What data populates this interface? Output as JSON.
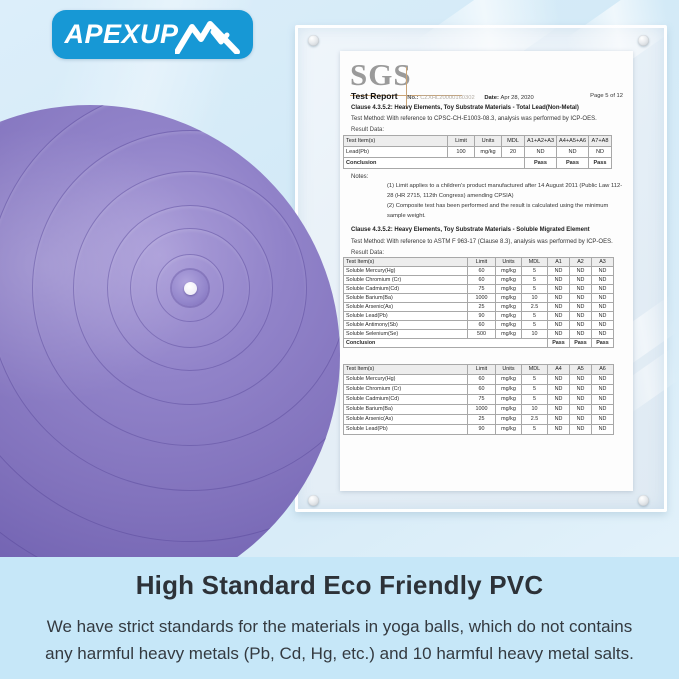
{
  "logo": {
    "text": "APEXUP",
    "icon": "mountain-icon",
    "brand_color": "#1798d5"
  },
  "report": {
    "lab_logo": "SGS",
    "title": "Test Report",
    "no_label": "No.:",
    "no_value": "CZXHL20000160302",
    "date_label": "Date:",
    "date_value": "Apr 28, 2020",
    "page": "Page 5 of 12",
    "section1": {
      "clause": "Clause 4.3.5.2: Heavy Elements, Toy Substrate Materials - Total Lead(Non-Metal)",
      "method_label": "Test Method:",
      "method": "With reference to CPSC-CH-E1003-08.3, analysis was performed by ICP-OES.",
      "result_label": "Result Data:",
      "table": {
        "headers": [
          "Test Item(s)",
          "Limit",
          "Units",
          "MDL",
          "A1+A2+A3",
          "A4+A5+A6",
          "A7+A8"
        ],
        "rows": [
          [
            "Lead(Pb)",
            "100",
            "mg/kg",
            "20",
            "ND",
            "ND",
            "ND"
          ]
        ],
        "conclusion": {
          "label": "Conclusion",
          "values": [
            "Pass",
            "Pass",
            "Pass"
          ]
        }
      },
      "notes_label": "Notes:",
      "notes": [
        "(1) Limit applies to a children's product manufactured after 14 August 2011 (Public Law 112-28 (HR 2715, 112th Congress) amending CPSIA)",
        "(2) Composite test has been performed and the result is calculated using the minimum sample weight."
      ]
    },
    "section2": {
      "clause": "Clause 4.3.5.2: Heavy Elements, Toy Substrate Materials - Soluble Migrated Element",
      "method_label": "Test Method:",
      "method": "With reference to ASTM F 963-17 (Clause 8.3), analysis was performed by ICP-OES.",
      "result_label": "Result Data:",
      "table": {
        "headers": [
          "Test Item(s)",
          "Limit",
          "Units",
          "MDL",
          "A1",
          "A2",
          "A3"
        ],
        "rows": [
          [
            "Soluble Mercury(Hg)",
            "60",
            "mg/kg",
            "5",
            "ND",
            "ND",
            "ND"
          ],
          [
            "Soluble Chromium (Cr)",
            "60",
            "mg/kg",
            "5",
            "ND",
            "ND",
            "ND"
          ],
          [
            "Soluble Cadmium(Cd)",
            "75",
            "mg/kg",
            "5",
            "ND",
            "ND",
            "ND"
          ],
          [
            "Soluble Barium(Ba)",
            "1000",
            "mg/kg",
            "10",
            "ND",
            "ND",
            "ND"
          ],
          [
            "Soluble Arsenic(As)",
            "25",
            "mg/kg",
            "2.5",
            "ND",
            "ND",
            "ND"
          ],
          [
            "Soluble Lead(Pb)",
            "90",
            "mg/kg",
            "5",
            "ND",
            "ND",
            "ND"
          ],
          [
            "Soluble Antimony(Sb)",
            "60",
            "mg/kg",
            "5",
            "ND",
            "ND",
            "ND"
          ],
          [
            "Soluble Selenium(Se)",
            "500",
            "mg/kg",
            "10",
            "ND",
            "ND",
            "ND"
          ]
        ],
        "conclusion": {
          "label": "Conclusion",
          "values": [
            "Pass",
            "Pass",
            "Pass"
          ]
        }
      }
    },
    "section3": {
      "table": {
        "headers": [
          "Test Item(s)",
          "Limit",
          "Units",
          "MDL",
          "A4",
          "A5",
          "A6"
        ],
        "rows": [
          [
            "Soluble Mercury(Hg)",
            "60",
            "mg/kg",
            "5",
            "ND",
            "ND",
            "ND"
          ],
          [
            "Soluble Chromium (Cr)",
            "60",
            "mg/kg",
            "5",
            "ND",
            "ND",
            "ND"
          ],
          [
            "Soluble Cadmium(Cd)",
            "75",
            "mg/kg",
            "5",
            "ND",
            "ND",
            "ND"
          ],
          [
            "Soluble Barium(Ba)",
            "1000",
            "mg/kg",
            "10",
            "ND",
            "ND",
            "ND"
          ],
          [
            "Soluble Arsenic(As)",
            "25",
            "mg/kg",
            "2.5",
            "ND",
            "ND",
            "ND"
          ],
          [
            "Soluble Lead(Pb)",
            "90",
            "mg/kg",
            "5",
            "ND",
            "ND",
            "ND"
          ]
        ]
      }
    }
  },
  "footer": {
    "heading": "High Standard Eco Friendly PVC",
    "body_line1": "We have strict standards for the materials in yoga balls, which do not contains",
    "body_line2": "any harmful heavy metals (Pb, Cd, Hg, etc.) and 10 harmful heavy metal salts."
  },
  "colors": {
    "background": "#d6ebf8",
    "footer_panel": "#c6e7f8",
    "brand_blue": "#1798d5",
    "ball_purple": "#8273bd",
    "heading_text": "#2d3238"
  }
}
